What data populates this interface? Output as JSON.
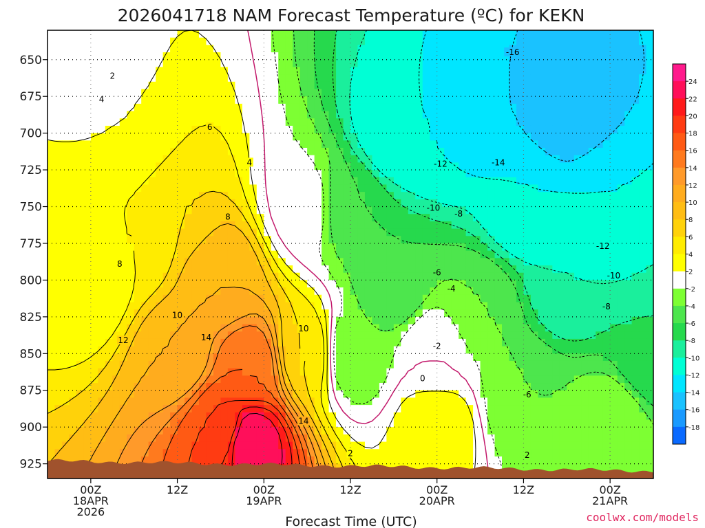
{
  "chart_data": {
    "type": "heatmap",
    "title": "2026041718 NAM Forecast Temperature (ºC) for KEKN",
    "xlabel": "Forecast Time (UTC)",
    "ylabel": "",
    "credit": "coolwx.com/models",
    "y_scale": "pressure_hPa_reversed",
    "ylim": [
      935,
      630
    ],
    "y_ticks": [
      650,
      675,
      700,
      725,
      750,
      775,
      800,
      825,
      850,
      875,
      900,
      925
    ],
    "xlim_hours": [
      -6,
      78
    ],
    "x_ticks": [
      {
        "hour": 0,
        "lines": [
          "00Z",
          "18APR",
          "2026"
        ]
      },
      {
        "hour": 12,
        "lines": [
          "12Z"
        ]
      },
      {
        "hour": 24,
        "lines": [
          "00Z",
          "19APR"
        ]
      },
      {
        "hour": 36,
        "lines": [
          "12Z"
        ]
      },
      {
        "hour": 48,
        "lines": [
          "00Z",
          "20APR"
        ]
      },
      {
        "hour": 60,
        "lines": [
          "12Z"
        ]
      },
      {
        "hour": 72,
        "lines": [
          "00Z",
          "21APR"
        ]
      }
    ],
    "grid": true,
    "colorbar": {
      "levels": [
        24,
        22,
        20,
        18,
        16,
        14,
        12,
        10,
        8,
        6,
        4,
        2,
        -2,
        -4,
        -6,
        -8,
        -10,
        -12,
        -14,
        -16,
        -18
      ],
      "colors": [
        "#ff1a8c",
        "#ff0f5a",
        "#ff1a1a",
        "#ff3b12",
        "#ff5a14",
        "#ff7a1e",
        "#ff9a2a",
        "#ffac1e",
        "#ffbd14",
        "#ffd20a",
        "#ffec00",
        "#ffff00",
        "#ffffff",
        "#7dff33",
        "#4de64d",
        "#26d94d",
        "#1aef9c",
        "#00ffd5",
        "#00e6ff",
        "#1ac2ff",
        "#1a9aff",
        "#0a6aff"
      ]
    },
    "series": [
      {
        "values": [
          [
            0.0,
            800,
            2
          ],
          [
            0.0,
            650,
            1
          ],
          [
            6.0,
            775,
            4
          ],
          [
            6.0,
            700,
            2
          ],
          [
            12.0,
            850,
            10
          ],
          [
            12.0,
            750,
            6
          ],
          [
            18.0,
            900,
            18
          ],
          [
            18.0,
            800,
            10
          ],
          [
            22.0,
            910,
            24
          ],
          [
            22.0,
            860,
            16
          ],
          [
            30.0,
            850,
            6
          ],
          [
            30.0,
            750,
            -1
          ],
          [
            36.0,
            850,
            -4
          ],
          [
            36.0,
            750,
            -6
          ],
          [
            42.0,
            800,
            -6
          ],
          [
            42.0,
            700,
            -12
          ],
          [
            48.0,
            900,
            4
          ],
          [
            48.0,
            850,
            0
          ],
          [
            48.0,
            700,
            -12
          ],
          [
            54.0,
            820,
            -4
          ],
          [
            54.0,
            680,
            -14
          ],
          [
            60.0,
            880,
            -4
          ],
          [
            60.0,
            750,
            -12
          ],
          [
            66.0,
            800,
            -10
          ],
          [
            66.0,
            680,
            -16
          ],
          [
            72.0,
            900,
            -2
          ],
          [
            72.0,
            750,
            -12
          ],
          [
            78.0,
            850,
            -8
          ]
        ]
      }
    ],
    "contour_labels": [
      {
        "hour": 3,
        "hpa": 661,
        "text": "2"
      },
      {
        "hour": 1.5,
        "hpa": 677,
        "text": "4"
      },
      {
        "hour": 16.5,
        "hpa": 696,
        "text": "6"
      },
      {
        "hour": 22,
        "hpa": 720,
        "text": "4"
      },
      {
        "hour": 19,
        "hpa": 757,
        "text": "8"
      },
      {
        "hour": 4,
        "hpa": 789,
        "text": "8"
      },
      {
        "hour": 12,
        "hpa": 824,
        "text": "10"
      },
      {
        "hour": 4.5,
        "hpa": 841,
        "text": "12"
      },
      {
        "hour": 16,
        "hpa": 839,
        "text": "14"
      },
      {
        "hour": 29.5,
        "hpa": 833,
        "text": "10"
      },
      {
        "hour": 29.5,
        "hpa": 896,
        "text": "14"
      },
      {
        "hour": 36,
        "hpa": 918,
        "text": "2"
      },
      {
        "hour": 46,
        "hpa": 867,
        "text": "0"
      },
      {
        "hour": 48,
        "hpa": 845,
        "text": "-2"
      },
      {
        "hour": 50,
        "hpa": 806,
        "text": "-4"
      },
      {
        "hour": 48,
        "hpa": 795,
        "text": "-6"
      },
      {
        "hour": 47.5,
        "hpa": 751,
        "text": "-10"
      },
      {
        "hour": 51,
        "hpa": 755,
        "text": "-8"
      },
      {
        "hour": 48.5,
        "hpa": 721,
        "text": "-12"
      },
      {
        "hour": 56.5,
        "hpa": 720,
        "text": "-14"
      },
      {
        "hour": 58.5,
        "hpa": 645,
        "text": "-16"
      },
      {
        "hour": 71,
        "hpa": 777,
        "text": "-12"
      },
      {
        "hour": 72.5,
        "hpa": 797,
        "text": "-10"
      },
      {
        "hour": 71.5,
        "hpa": 818,
        "text": "-8"
      },
      {
        "hour": 60.5,
        "hpa": 878,
        "text": "-6"
      },
      {
        "hour": 60.5,
        "hpa": 919,
        "text": "2"
      }
    ]
  }
}
